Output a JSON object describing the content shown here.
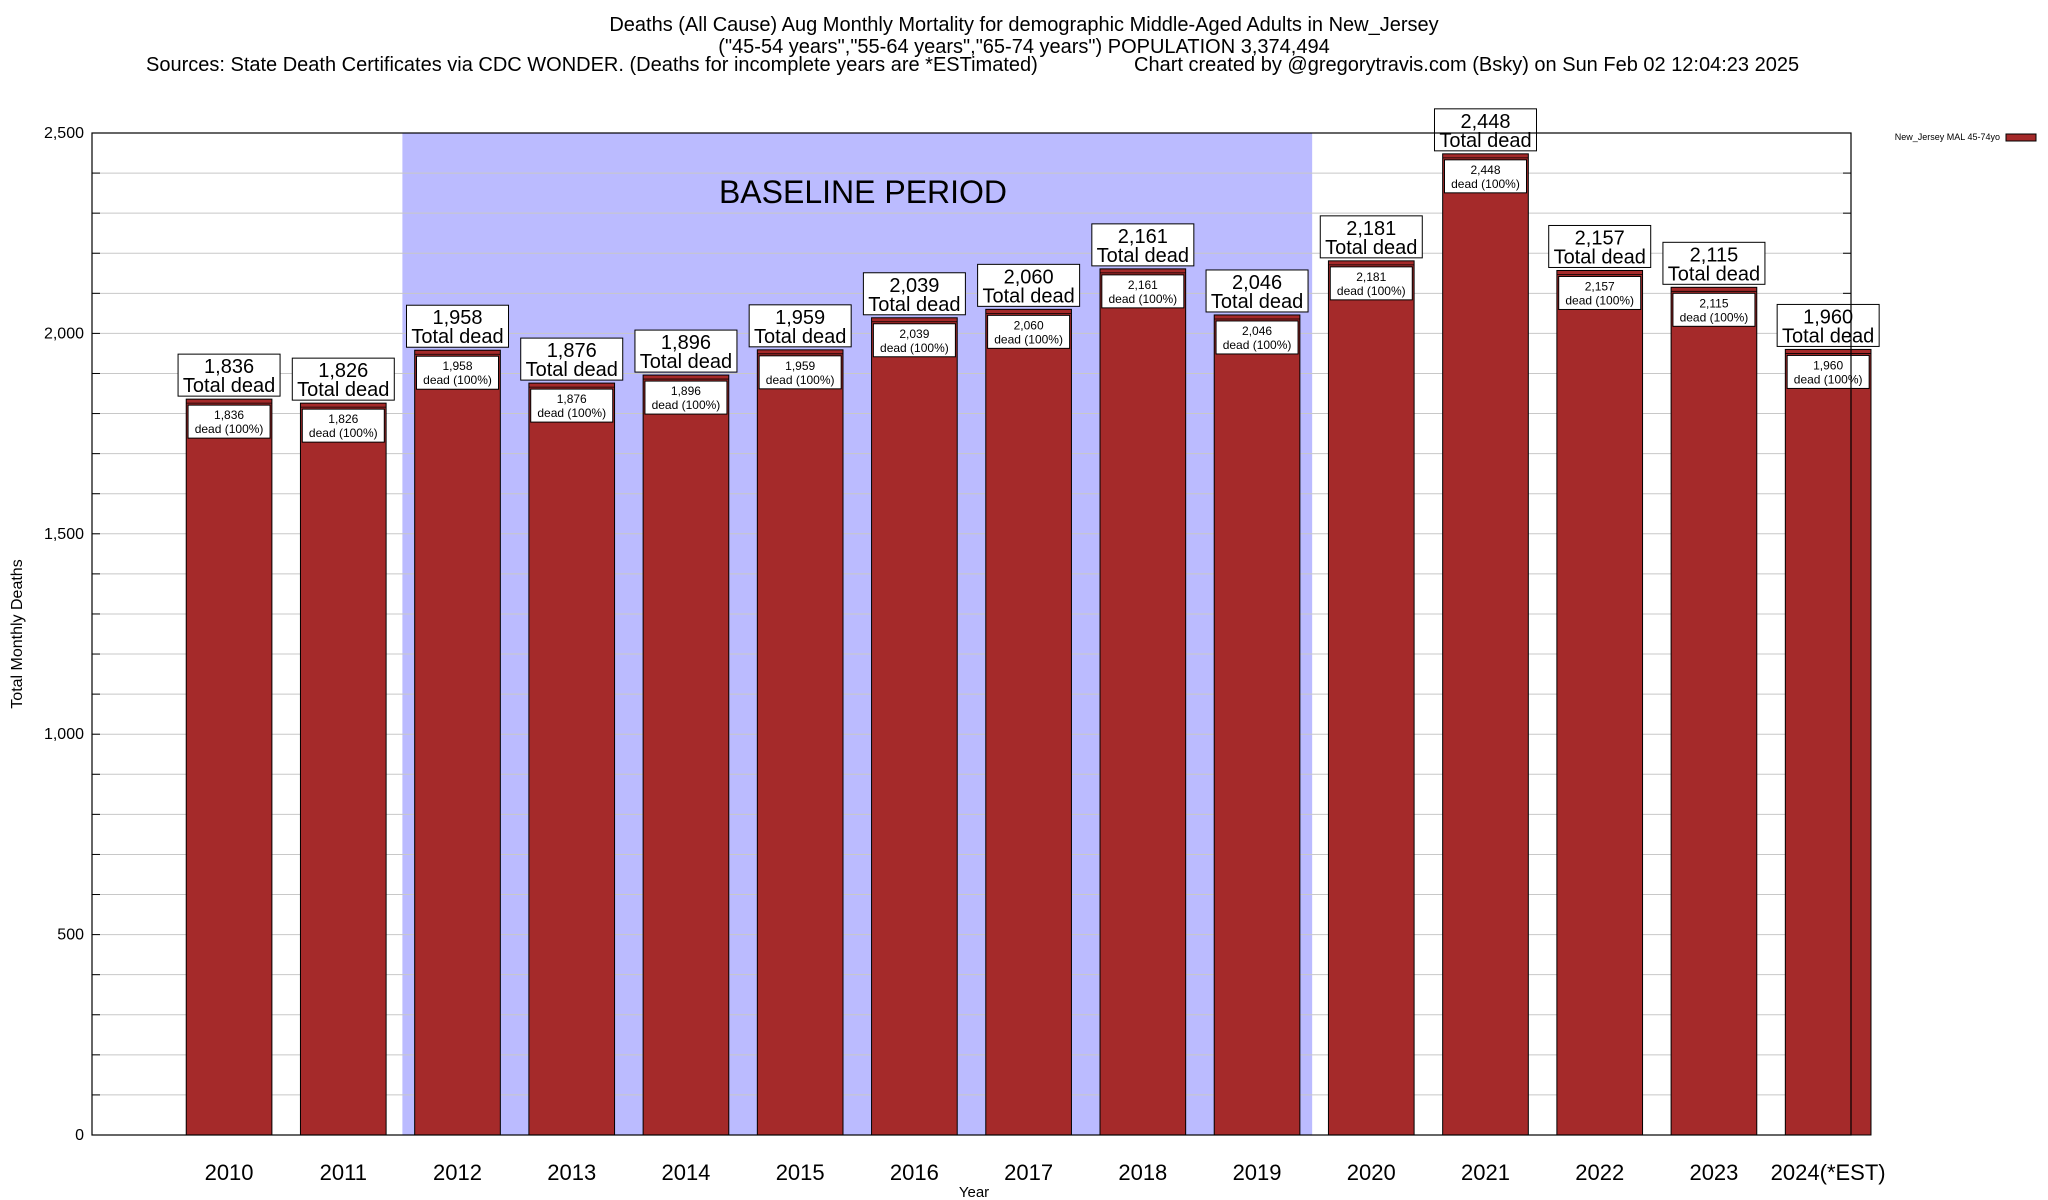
{
  "chart_data": {
    "type": "bar",
    "title": "Deaths (All Cause) Aug Monthly Mortality for demographic Middle-Aged Adults in New_Jersey",
    "subtitle": "(\"45-54 years\",\"55-64 years\",\"65-74 years\") POPULATION 3,374,494",
    "sources": "Sources: State Death Certificates via CDC WONDER. (Deaths for incomplete years are *ESTimated)",
    "credit": "Chart created by @gregorytravis.com (Bsky) on Sun Feb 02 12:04:23 2025",
    "xlabel": "Year",
    "ylabel": "Total Monthly Deaths",
    "ylim": [
      0,
      2500
    ],
    "yticks": [
      0,
      500,
      1000,
      1500,
      2000,
      2500
    ],
    "ytick_labels": [
      "0",
      "500",
      "1,000",
      "1,500",
      "2,000",
      "2,500"
    ],
    "grid": true,
    "categories": [
      "2010",
      "2011",
      "2012",
      "2013",
      "2014",
      "2015",
      "2016",
      "2017",
      "2018",
      "2019",
      "2020",
      "2021",
      "2022",
      "2023",
      "2024(*EST)"
    ],
    "series": [
      {
        "name": "New_Jersey MAL 45-74yo",
        "color": "#a52a2a",
        "values": [
          1836,
          1826,
          1958,
          1876,
          1896,
          1959,
          2039,
          2060,
          2161,
          2046,
          2181,
          2448,
          2157,
          2115,
          1960
        ]
      }
    ],
    "value_labels": [
      "1,836",
      "1,826",
      "1,958",
      "1,876",
      "1,896",
      "1,959",
      "2,039",
      "2,060",
      "2,161",
      "2,046",
      "2,181",
      "2,448",
      "2,157",
      "2,115",
      "1,960"
    ],
    "label_total_suffix": "Total dead",
    "label_inner_suffix": "dead (100%)",
    "baseline": {
      "label": "BASELINE PERIOD",
      "start": "2012",
      "end": "2019",
      "color": "#bbbbff"
    },
    "legend_position": "top-right"
  }
}
